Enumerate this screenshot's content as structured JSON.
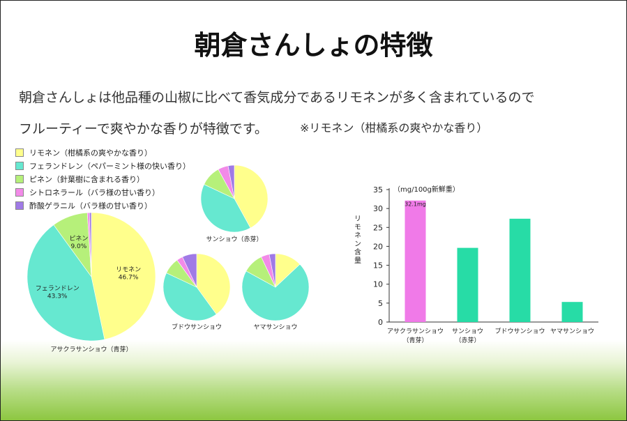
{
  "slide": {
    "title": "朝倉さんしょの特徴",
    "body_line_1": "朝倉さんしょは他品種の山椒に比べて香気成分であるリモネンが多く含まれているので",
    "body_line_2": "フルーティーで爽やかな香りが特徴です。",
    "body_note": "※リモネン（柑橘系の爽やかな香り）"
  },
  "legend": [
    {
      "label": "リモネン（柑橘系の爽やかな香り）",
      "color": "#ffff8c"
    },
    {
      "label": "フェランドレン（ペパーミント様の快い香り）",
      "color": "#66e8d0"
    },
    {
      "label": "ピネン（針葉樹に含まれる香り）",
      "color": "#b6f07a"
    },
    {
      "label": "シトロネラール（バラ様の甘い香り）",
      "color": "#f28ae8"
    },
    {
      "label": "酢酸ゲラニル（バラ様の甘い香り）",
      "color": "#a07ae6"
    }
  ],
  "chart_data": [
    {
      "type": "pie",
      "label": "アサクラサンショウ（青芽）",
      "slices": [
        {
          "name": "リモネン",
          "value": 46.7,
          "pct_label": "46.7%"
        },
        {
          "name": "フェランドレン",
          "value": 43.3,
          "pct_label": "43.3%"
        },
        {
          "name": "ピネン",
          "value": 9.0,
          "pct_label": "9.0%"
        },
        {
          "name": "シトロネラール",
          "value": 0.5
        },
        {
          "name": "酢酸ゲラニル",
          "value": 0.5
        }
      ]
    },
    {
      "type": "pie",
      "label": "サンショウ（赤芽）",
      "slices": [
        {
          "name": "リモネン",
          "value": 42
        },
        {
          "name": "フェランドレン",
          "value": 40
        },
        {
          "name": "ピネン",
          "value": 10
        },
        {
          "name": "シトロネラール",
          "value": 5
        },
        {
          "name": "酢酸ゲラニル",
          "value": 3
        }
      ]
    },
    {
      "type": "pie",
      "label": "ブドウサンショウ",
      "slices": [
        {
          "name": "リモネン",
          "value": 40
        },
        {
          "name": "フェランドレン",
          "value": 42
        },
        {
          "name": "ピネン",
          "value": 8
        },
        {
          "name": "シトロネラール",
          "value": 3
        },
        {
          "name": "酢酸ゲラニル",
          "value": 7
        }
      ]
    },
    {
      "type": "pie",
      "label": "ヤマサンショウ",
      "slices": [
        {
          "name": "リモネン",
          "value": 13
        },
        {
          "name": "フェランドレン",
          "value": 70
        },
        {
          "name": "ピネン",
          "value": 10
        },
        {
          "name": "シトロネラール",
          "value": 4
        },
        {
          "name": "酢酸ゲラニル",
          "value": 3
        }
      ]
    },
    {
      "type": "bar",
      "unit_label": "（mg/100g新鮮重）",
      "ylabel": "リモネン含量",
      "ylim": [
        0,
        35
      ],
      "yticks": [
        0,
        5,
        10,
        15,
        20,
        25,
        30,
        35
      ],
      "categories": [
        [
          "アサクラサンショウ",
          "（青芽）"
        ],
        [
          "サンショウ",
          "（赤芽）"
        ],
        [
          "ブドウサンショウ"
        ],
        [
          "ヤマサンショウ"
        ]
      ],
      "values": [
        32.1,
        19.6,
        27.3,
        5.3
      ],
      "colors": [
        "#f07ae8",
        "#27dca6",
        "#27dca6",
        "#27dca6"
      ],
      "data_labels": [
        "32.1mg",
        "",
        "",
        ""
      ]
    }
  ]
}
